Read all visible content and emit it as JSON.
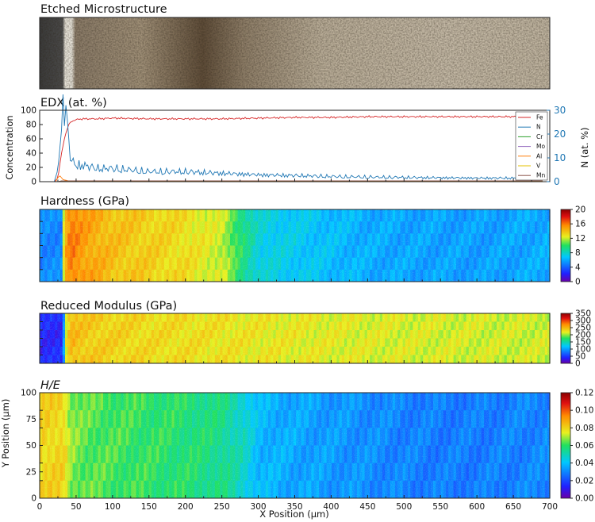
{
  "panels": {
    "micro": {
      "title": "Etched Microstructure"
    },
    "edx": {
      "title": "EDX (at. %)",
      "ylabel": "Concentration",
      "y2label": "N (at. %)"
    },
    "hardness": {
      "title": "Hardness (GPa)"
    },
    "modulus": {
      "title": "Reduced Modulus (GPa)"
    },
    "he": {
      "title": "H/E",
      "ylabel": "Y Position (µm)"
    }
  },
  "xlabel": "X Position (µm)",
  "colors": {
    "Fe": "#d62728",
    "N": "#1f77b4",
    "Cr": "#2ca02c",
    "Mo": "#9467bd",
    "Al": "#ff7f0e",
    "V": "#e6c200",
    "Mn": "#8c564b",
    "y2axis": "#1f77b4"
  },
  "chart_data": [
    {
      "type": "line",
      "title": "EDX (at. %)",
      "ylabel": "Concentration",
      "y2label": "N (at. %)",
      "xlim": [
        0,
        700
      ],
      "ylim": [
        0,
        100
      ],
      "y2lim": [
        0,
        30
      ],
      "yticks": [
        "0",
        "20",
        "40",
        "60",
        "80",
        "100"
      ],
      "y2ticks": [
        "0",
        "10",
        "20",
        "30"
      ],
      "legend": {
        "position": "right",
        "entries": [
          "Fe",
          "N",
          "Cr",
          "Mo",
          "Al",
          "V",
          "Mn"
        ]
      },
      "series": [
        {
          "name": "Fe",
          "axis": "left",
          "x": [
            0,
            20,
            25,
            30,
            35,
            40,
            45,
            50,
            60,
            80,
            100,
            150,
            200,
            250,
            300,
            350,
            400,
            450,
            500,
            550,
            600,
            650,
            690
          ],
          "y": [
            0,
            0,
            5,
            40,
            65,
            80,
            85,
            87,
            88,
            88,
            89,
            88,
            88,
            88,
            89,
            90,
            90,
            91,
            91,
            91,
            91,
            91,
            91
          ]
        },
        {
          "name": "N",
          "axis": "right",
          "x": [
            0,
            20,
            25,
            28,
            30,
            32,
            35,
            38,
            40,
            42,
            45,
            50,
            60,
            80,
            100,
            150,
            200,
            250,
            300,
            350,
            400,
            450,
            500,
            550,
            600,
            650,
            690
          ],
          "y": [
            0,
            0,
            5,
            15,
            22,
            24,
            23,
            18,
            12,
            8,
            6,
            5,
            5,
            4,
            4,
            3,
            3,
            2.5,
            2,
            1.8,
            1.5,
            1.3,
            1.2,
            1.1,
            1,
            1,
            1
          ]
        },
        {
          "name": "Cr",
          "axis": "left",
          "x": [
            0,
            25,
            30,
            690
          ],
          "y": [
            0,
            0,
            1,
            1
          ]
        },
        {
          "name": "Mo",
          "axis": "left",
          "x": [
            0,
            25,
            30,
            690
          ],
          "y": [
            0,
            0,
            0.5,
            0.5
          ]
        },
        {
          "name": "Al",
          "axis": "left",
          "x": [
            0,
            22,
            25,
            28,
            32,
            40,
            690
          ],
          "y": [
            0,
            0,
            6,
            8,
            3,
            1,
            1
          ]
        },
        {
          "name": "V",
          "axis": "left",
          "x": [
            0,
            25,
            30,
            690
          ],
          "y": [
            0,
            0,
            0.4,
            0.4
          ]
        },
        {
          "name": "Mn",
          "axis": "left",
          "x": [
            0,
            25,
            30,
            690
          ],
          "y": [
            0,
            0,
            1.2,
            1.2
          ]
        }
      ]
    },
    {
      "type": "heatmap",
      "title": "Hardness (GPa)",
      "xlim": [
        0,
        700
      ],
      "colorbar": {
        "min": 0,
        "max": 20,
        "ticks": [
          "0",
          "4",
          "8",
          "12",
          "16",
          "20"
        ]
      },
      "profile_x": [
        0,
        5,
        10,
        20,
        28,
        32,
        40,
        60,
        100,
        150,
        200,
        250,
        270,
        300,
        350,
        400,
        450,
        500,
        550,
        600,
        650,
        700
      ],
      "profile_v": [
        5,
        5,
        5,
        5,
        5,
        14,
        16,
        15,
        14,
        13.5,
        13,
        12,
        10,
        7.5,
        7,
        6.5,
        6,
        5.8,
        5.7,
        5.6,
        5.8,
        6
      ]
    },
    {
      "type": "heatmap",
      "title": "Reduced Modulus (GPa)",
      "xlim": [
        0,
        700
      ],
      "colorbar": {
        "min": 0,
        "max": 350,
        "ticks": [
          "0",
          "50",
          "100",
          "150",
          "200",
          "250",
          "300",
          "350"
        ]
      },
      "profile_x": [
        0,
        5,
        10,
        20,
        30,
        34,
        40,
        60,
        100,
        150,
        200,
        250,
        300,
        350,
        400,
        450,
        500,
        550,
        600,
        650,
        700
      ],
      "profile_v": [
        40,
        40,
        40,
        40,
        40,
        210,
        250,
        240,
        235,
        230,
        228,
        225,
        222,
        220,
        218,
        216,
        215,
        214,
        213,
        212,
        212
      ]
    },
    {
      "type": "heatmap",
      "title": "H/E",
      "ylabel": "Y Position (µm)",
      "xlabel": "X Position (µm)",
      "xlim": [
        0,
        700
      ],
      "ylim": [
        0,
        100
      ],
      "xticks": [
        "0",
        "50",
        "100",
        "150",
        "200",
        "250",
        "300",
        "350",
        "400",
        "450",
        "500",
        "550",
        "600",
        "650",
        "700"
      ],
      "yticks": [
        "0",
        "25",
        "50",
        "75",
        "100"
      ],
      "colorbar": {
        "min": 0,
        "max": 0.12,
        "ticks": [
          "0.00",
          "0.02",
          "0.04",
          "0.06",
          "0.08",
          "0.10",
          "0.12"
        ]
      },
      "profile_x": [
        0,
        5,
        10,
        20,
        30,
        35,
        40,
        60,
        100,
        150,
        200,
        250,
        280,
        300,
        350,
        400,
        450,
        500,
        550,
        600,
        650,
        700
      ],
      "profile_v": [
        0.08,
        0.08,
        0.08,
        0.08,
        0.08,
        0.075,
        0.068,
        0.064,
        0.062,
        0.06,
        0.058,
        0.055,
        0.047,
        0.038,
        0.035,
        0.033,
        0.031,
        0.029,
        0.028,
        0.028,
        0.029,
        0.03
      ]
    }
  ]
}
